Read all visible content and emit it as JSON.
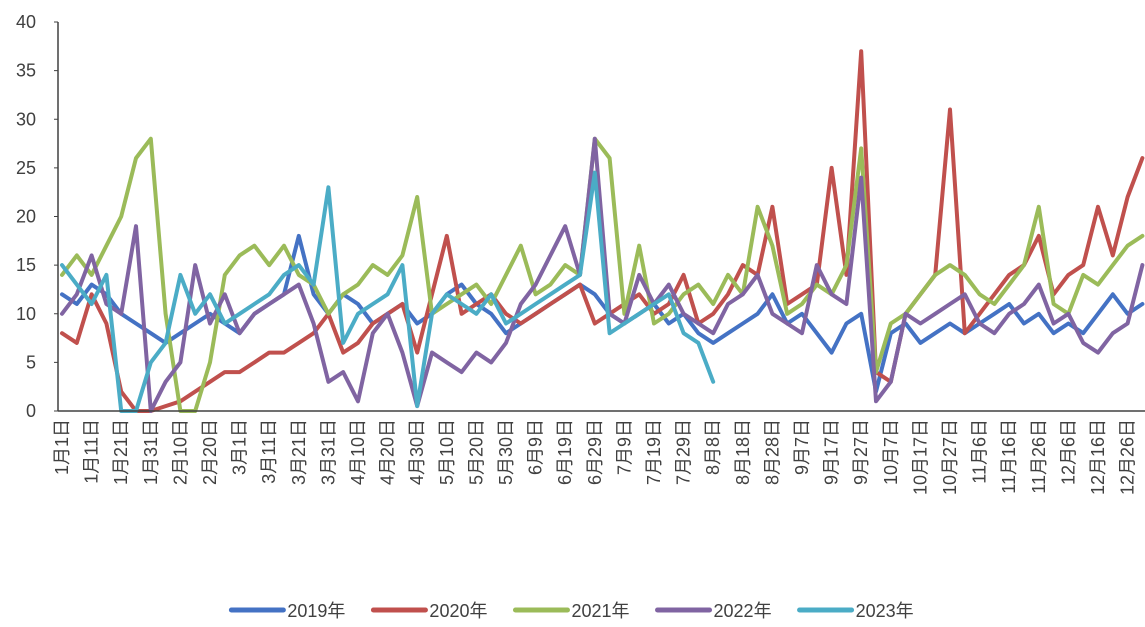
{
  "chart_data": {
    "type": "line",
    "categories": [
      "1月1日",
      null,
      "1月11日",
      null,
      "1月21日",
      null,
      "1月31日",
      null,
      "2月10日",
      null,
      "2月20日",
      null,
      "3月1日",
      null,
      "3月11日",
      null,
      "3月21日",
      null,
      "3月31日",
      null,
      "4月10日",
      null,
      "4月20日",
      null,
      "4月30日",
      null,
      "5月10日",
      null,
      "5月20日",
      null,
      "5月30日",
      null,
      "6月9日",
      null,
      "6月19日",
      null,
      "6月29日",
      null,
      "7月9日",
      null,
      "7月19日",
      null,
      "7月29日",
      null,
      "8月8日",
      null,
      "8月18日",
      null,
      "8月28日",
      null,
      "9月7日",
      null,
      "9月17日",
      null,
      "9月27日",
      null,
      "10月7日",
      null,
      "10月17日",
      null,
      "10月27日",
      null,
      "11月6日",
      null,
      "11月16日",
      null,
      "11月26日",
      null,
      "12月6日",
      null,
      "12月16日",
      null,
      "12月26日",
      null
    ],
    "series": [
      {
        "name": "2019年",
        "color": "#4472c4",
        "values": [
          12,
          11,
          13,
          12,
          10,
          9,
          8,
          7,
          8,
          9,
          10,
          9,
          8,
          10,
          11,
          12,
          18,
          12,
          10,
          12,
          11,
          9,
          10,
          11,
          9,
          10,
          12,
          13,
          11,
          10,
          8,
          9,
          10,
          11,
          12,
          13,
          12,
          10,
          9,
          10,
          11,
          9,
          10,
          8,
          7,
          8,
          9,
          10,
          12,
          9,
          10,
          8,
          6,
          9,
          10,
          2,
          8,
          9,
          7,
          8,
          9,
          8,
          9,
          10,
          11,
          9,
          10,
          8,
          9,
          8,
          10,
          12,
          10,
          11
        ]
      },
      {
        "name": "2020年",
        "color": "#c0504d",
        "values": [
          8,
          7,
          12,
          9,
          2,
          0,
          0,
          0.5,
          1,
          2,
          3,
          4,
          4,
          5,
          6,
          6,
          7,
          8,
          10,
          6,
          7,
          9,
          10,
          11,
          6,
          12,
          18,
          10,
          11,
          12,
          10,
          9,
          10,
          11,
          12,
          13,
          9,
          10,
          11,
          12,
          10,
          11,
          14,
          9,
          10,
          12,
          15,
          14,
          21,
          11,
          12,
          13,
          25,
          14,
          37,
          4,
          3,
          10,
          12,
          14,
          31,
          8,
          10,
          12,
          14,
          15,
          18,
          12,
          14,
          15,
          21,
          16,
          22,
          26
        ]
      },
      {
        "name": "2021年",
        "color": "#9bbb59",
        "values": [
          14,
          16,
          14,
          17,
          20,
          26,
          28,
          10,
          0,
          0,
          5,
          14,
          16,
          17,
          15,
          17,
          14,
          13,
          10,
          12,
          13,
          15,
          14,
          16,
          22,
          10,
          11,
          12,
          13,
          11,
          14,
          17,
          12,
          13,
          15,
          14,
          28,
          26,
          10,
          17,
          9,
          10,
          12,
          13,
          11,
          14,
          12,
          21,
          17,
          10,
          11,
          13,
          12,
          15,
          27,
          4,
          9,
          10,
          12,
          14,
          15,
          14,
          12,
          11,
          13,
          15,
          21,
          11,
          10,
          14,
          13,
          15,
          17,
          18
        ]
      },
      {
        "name": "2022年",
        "color": "#8064a2",
        "values": [
          10,
          12,
          16,
          11,
          10,
          19,
          0,
          3,
          5,
          15,
          9,
          12,
          8,
          10,
          11,
          12,
          13,
          9,
          3,
          4,
          1,
          8,
          10,
          6,
          0.5,
          6,
          5,
          4,
          6,
          5,
          7,
          11,
          13,
          16,
          19,
          14,
          28,
          10,
          9,
          14,
          11,
          13,
          10,
          9,
          8,
          11,
          12,
          14,
          10,
          9,
          8,
          15,
          12,
          11,
          24,
          1,
          3,
          10,
          9,
          10,
          11,
          12,
          9,
          8,
          10,
          11,
          13,
          9,
          10,
          7,
          6,
          8,
          9,
          15
        ]
      },
      {
        "name": "2023年",
        "color": "#4bacc6",
        "values": [
          15,
          13,
          11,
          14,
          0,
          0,
          5,
          7,
          14,
          10,
          12,
          9,
          10,
          11,
          12,
          14,
          15,
          13,
          23,
          7,
          10,
          11,
          12,
          15,
          0.5,
          10,
          12,
          11,
          10,
          12,
          9,
          10,
          11,
          12,
          13,
          14,
          24.5,
          8,
          9,
          10,
          11,
          12,
          8,
          7,
          3,
          null,
          null,
          null,
          null,
          null,
          null,
          null,
          null,
          null,
          null,
          null,
          null,
          null,
          null,
          null,
          null,
          null,
          null,
          null,
          null,
          null,
          null,
          null,
          null,
          null,
          null,
          null,
          null,
          null
        ]
      }
    ],
    "ylim": [
      0,
      40
    ],
    "yticks": [
      0,
      5,
      10,
      15,
      20,
      25,
      30,
      35,
      40
    ],
    "grid": false,
    "legend": "bottom"
  }
}
